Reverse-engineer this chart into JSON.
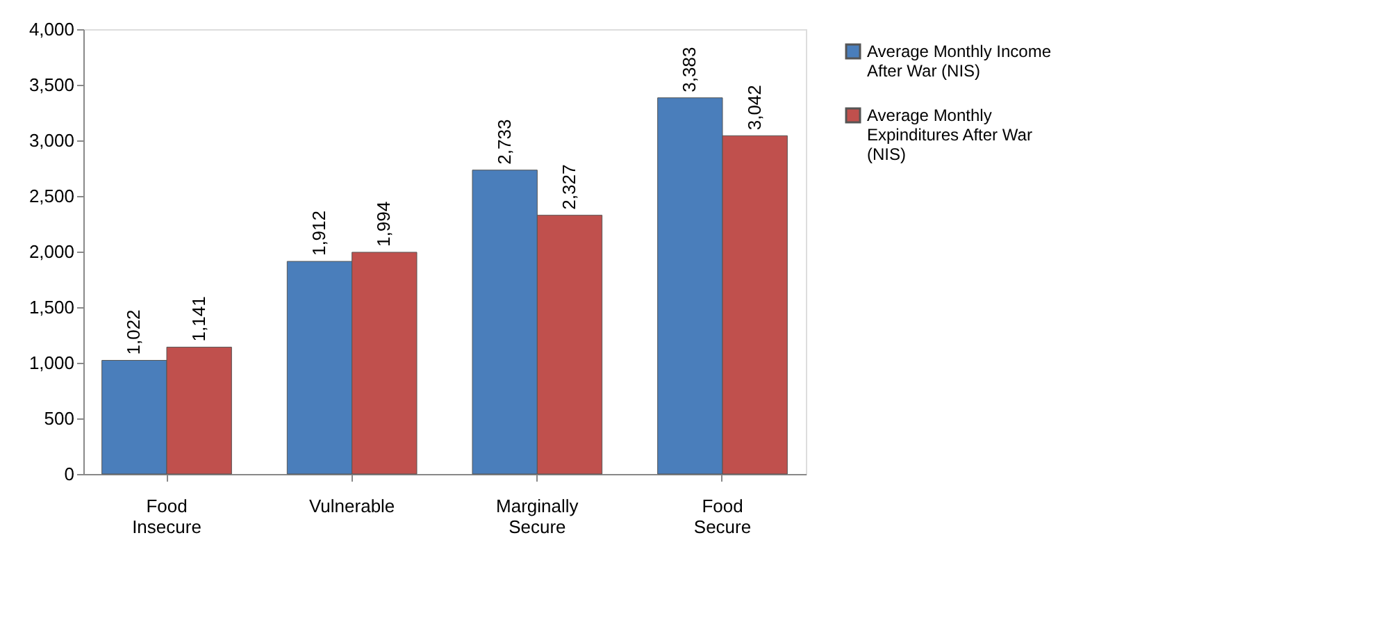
{
  "chart_data": {
    "type": "bar",
    "categories": [
      "Food Insecure",
      "Vulnerable",
      "Marginally Secure",
      "Food Secure"
    ],
    "series": [
      {
        "name": "Average Monthly Income After War (NIS)",
        "color": "#4a7ebb",
        "values": [
          1022,
          1912,
          2733,
          3383
        ],
        "value_labels": [
          "1,022",
          "1,912",
          "2,733",
          "3,383"
        ]
      },
      {
        "name": "Average Monthly Expinditures After War (NIS)",
        "color": "#c0504d",
        "values": [
          1141,
          1994,
          2327,
          3042
        ],
        "value_labels": [
          "1,141",
          "1,994",
          "2,327",
          "3,042"
        ]
      }
    ],
    "ylim": [
      0,
      4000
    ],
    "yticks": [
      0,
      {
        "value": 500,
        "label": "500"
      },
      {
        "value": 1000,
        "label": "1,000"
      },
      {
        "value": 1500,
        "label": "1,500"
      },
      {
        "value": 2000,
        "label": "2,000"
      },
      {
        "value": 2500,
        "label": "2,500"
      },
      {
        "value": 3000,
        "label": "3,000"
      },
      {
        "value": 3500,
        "label": "3,500"
      },
      {
        "value": 4000,
        "label": "4,000"
      }
    ],
    "grid": false,
    "legend": "right"
  }
}
